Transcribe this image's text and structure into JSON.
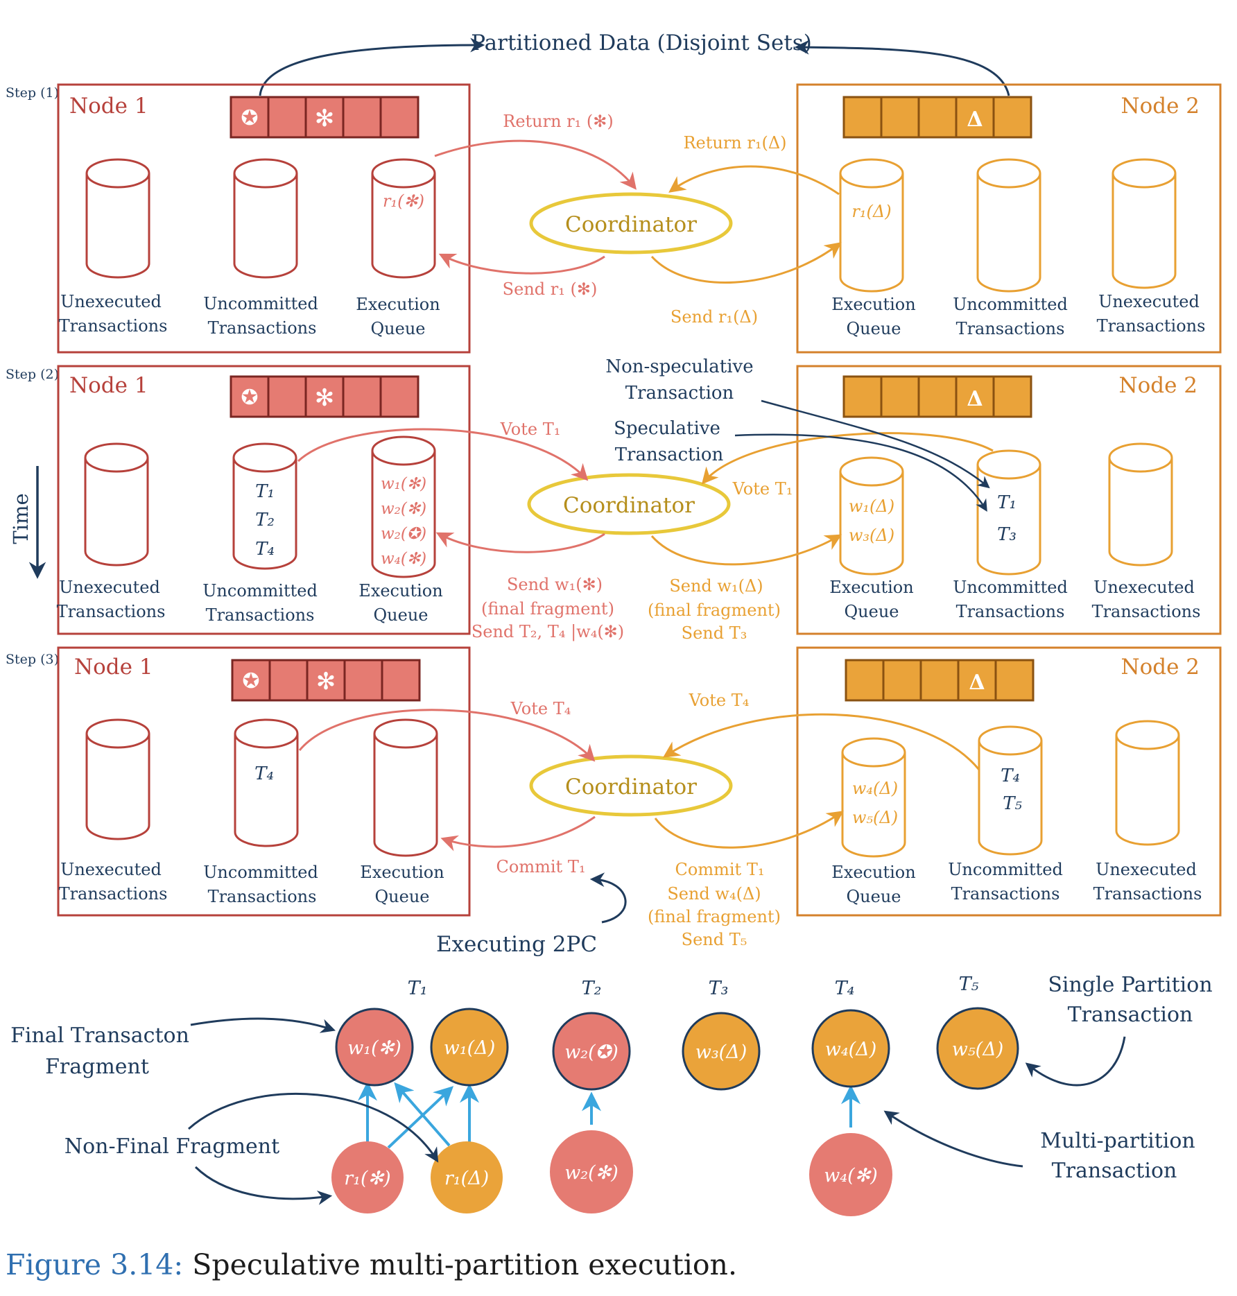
{
  "title": "Partitioned Data (Disjoint Sets)",
  "time_label": "Time",
  "caption": {
    "label": "Figure 3.14:",
    "text": "Speculative multi-partition execution."
  },
  "common": {
    "node1": "Node 1",
    "node2": "Node 2",
    "coordinator": "Coordinator",
    "unexecuted": [
      "Unexecuted",
      "Transactions"
    ],
    "uncommitted": [
      "Uncommitted",
      "Transactions"
    ],
    "exec_queue": [
      "Execution",
      "Queue"
    ],
    "sym_star": "✪",
    "sym_ast": "✻",
    "sym_delta": "Δ"
  },
  "steps": [
    {
      "label": "Step (1)",
      "n1_queue": [
        "r₁(✻)"
      ],
      "n1_uncommitted": [],
      "n2_queue": [
        "r₁(Δ)"
      ],
      "n2_uncommitted": [],
      "n1_to_coord": "Return r₁ (✻)",
      "coord_to_n1": [
        "Send r₁ (✻)"
      ],
      "n2_to_coord": "Return r₁(Δ)",
      "coord_to_n2": [
        "Send r₁(Δ)"
      ]
    },
    {
      "label": "Step (2)",
      "n1_queue": [
        "w₁(✻)",
        "w₂(✻)",
        "w₂(✪)",
        "w₄(✻)"
      ],
      "n1_uncommitted": [
        "T₁",
        "T₂",
        "T₄"
      ],
      "n2_queue": [
        "w₁(Δ)",
        "w₃(Δ)"
      ],
      "n2_uncommitted": [
        "T₁",
        "T₃"
      ],
      "n1_to_coord": "Vote T₁",
      "coord_to_n1": [
        "Send w₁(✻)",
        "(final fragment)",
        "Send T₂, T₄ |w₄(✻)"
      ],
      "n2_to_coord": "Vote T₁",
      "coord_to_n2": [
        "Send w₁(Δ)",
        "(final fragment)",
        "Send T₃"
      ],
      "annot_nonspec": [
        "Non-speculative",
        "Transaction"
      ],
      "annot_spec": [
        "Speculative",
        "Transaction"
      ]
    },
    {
      "label": "Step (3)",
      "n1_queue": [],
      "n1_uncommitted": [
        "T₄"
      ],
      "n2_queue": [
        "w₄(Δ)",
        "w₅(Δ)"
      ],
      "n2_uncommitted": [
        "T₄",
        "T₅"
      ],
      "n1_to_coord": "Vote T₄",
      "coord_to_n1": [
        "Commit T₁"
      ],
      "n2_to_coord": "Vote T₄",
      "coord_to_n2": [
        "Commit T₁",
        "Send w₄(Δ)",
        "(final fragment)",
        "Send T₅"
      ],
      "annot_2pc": "Executing 2PC"
    }
  ],
  "legend": {
    "tx_labels": [
      "T₁",
      "T₂",
      "T₃",
      "T₄",
      "T₅"
    ],
    "final_fragments": [
      "w₁(✻)",
      "w₁(Δ)",
      "w₂(✪)",
      "w₃(Δ)",
      "w₄(Δ)",
      "w₅(Δ)"
    ],
    "nonfinal_fragments": [
      "r₁(✻)",
      "r₁(Δ)",
      "w₂(✻)",
      "w₄(✻)"
    ],
    "final_label": [
      "Final Transacton",
      "Fragment"
    ],
    "nonfinal_label": "Non-Final Fragment",
    "single_label": [
      "Single Partition",
      "Transaction"
    ],
    "multi_label": [
      "Multi-partition",
      "Transaction"
    ]
  },
  "colors": {
    "node1": "#b6413b",
    "node1_fill": "#e57b72",
    "node2": "#d4812b",
    "node2_fill": "#eaa33a",
    "coordinator": "#e8c83a",
    "navy": "#1f3b5c",
    "blue_arrow": "#3aa6de"
  }
}
